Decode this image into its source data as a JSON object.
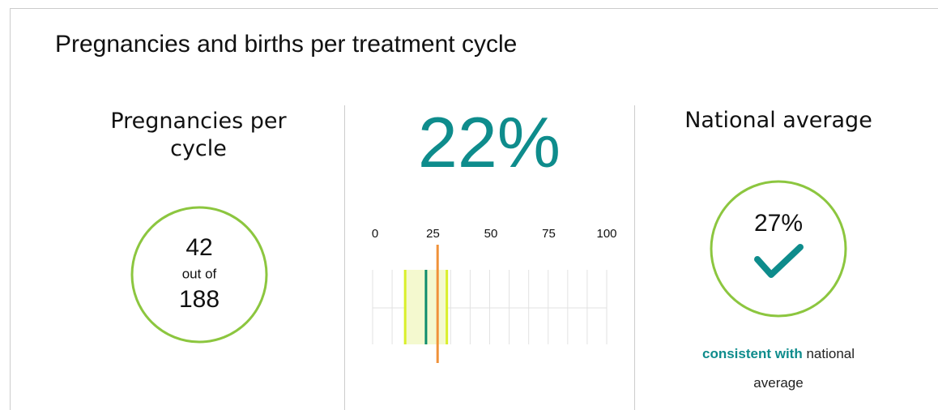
{
  "header": {
    "title": "Pregnancies and births per treatment cycle"
  },
  "clinic": {
    "heading": "Pregnancies per cycle",
    "count": 42,
    "connector": "out of",
    "total": 188
  },
  "rate": {
    "value": 22,
    "value_label": "22%",
    "scale": {
      "xlim": [
        0,
        100
      ],
      "xticks": [
        0,
        25,
        50,
        75,
        100
      ],
      "range": [
        13,
        31
      ],
      "national": 27
    }
  },
  "national": {
    "heading": "National average",
    "value": 27,
    "value_label": "27%",
    "verdict": "consistent with",
    "verdict_rest": "national average"
  }
}
